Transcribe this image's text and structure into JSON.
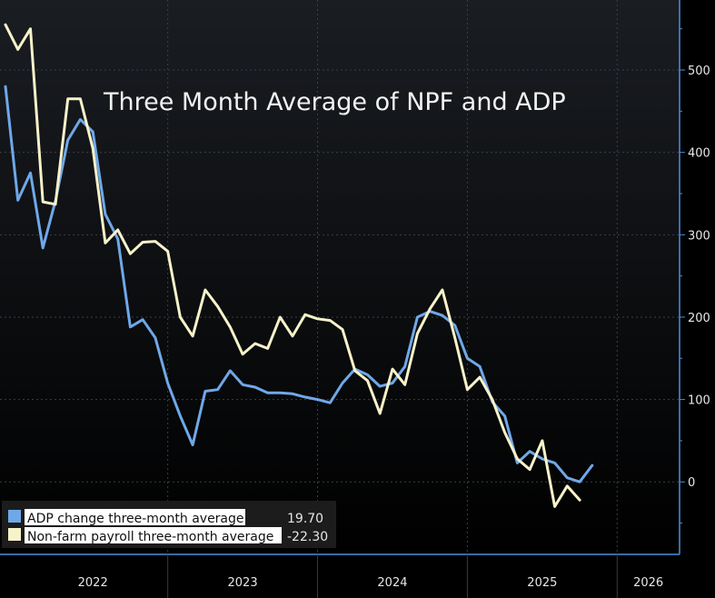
{
  "chart_data": {
    "type": "line",
    "title": "Three Month Average of NPF and ADP",
    "xlabel": "",
    "ylabel": "",
    "x_start": "2021-12",
    "x_range": [
      "2021-12",
      "2026-06"
    ],
    "year_ticks": [
      "2022",
      "2023",
      "2024",
      "2025",
      "2026"
    ],
    "ylim": [
      -88,
      585
    ],
    "y_ticks": [
      0,
      100,
      200,
      300,
      400,
      500
    ],
    "grid": true,
    "legend_position": "bottom-left",
    "colors": {
      "background_top": "#1a1d22",
      "background_bottom": "#000000",
      "axis": "#4d8fe0",
      "grid": "#3a3f47",
      "adp": "#6fa8e8",
      "nfp": "#f8f2c9"
    },
    "series": [
      {
        "name": "ADP change three-month average",
        "last_value": "19.70",
        "values": [
          480,
          342,
          375,
          284,
          341,
          415,
          440,
          425,
          325,
          295,
          188,
          197,
          175,
          120,
          80,
          45,
          110,
          112,
          135,
          118,
          115,
          108,
          108,
          107,
          103,
          100,
          96,
          120,
          137,
          130,
          116,
          120,
          140,
          200,
          207,
          202,
          190,
          150,
          140,
          97,
          80,
          23,
          37,
          28,
          23,
          5,
          0,
          20
        ]
      },
      {
        "name": "Non-farm payroll three-month average",
        "last_value": "-22.30",
        "values": [
          555,
          525,
          550,
          340,
          337,
          465,
          465,
          405,
          290,
          306,
          277,
          291,
          292,
          280,
          200,
          177,
          233,
          213,
          188,
          155,
          168,
          162,
          200,
          177,
          203,
          198,
          196,
          185,
          135,
          123,
          83,
          137,
          118,
          180,
          210,
          233,
          175,
          112,
          127,
          100,
          60,
          28,
          15,
          50,
          -30,
          -5,
          -22
        ]
      }
    ]
  }
}
